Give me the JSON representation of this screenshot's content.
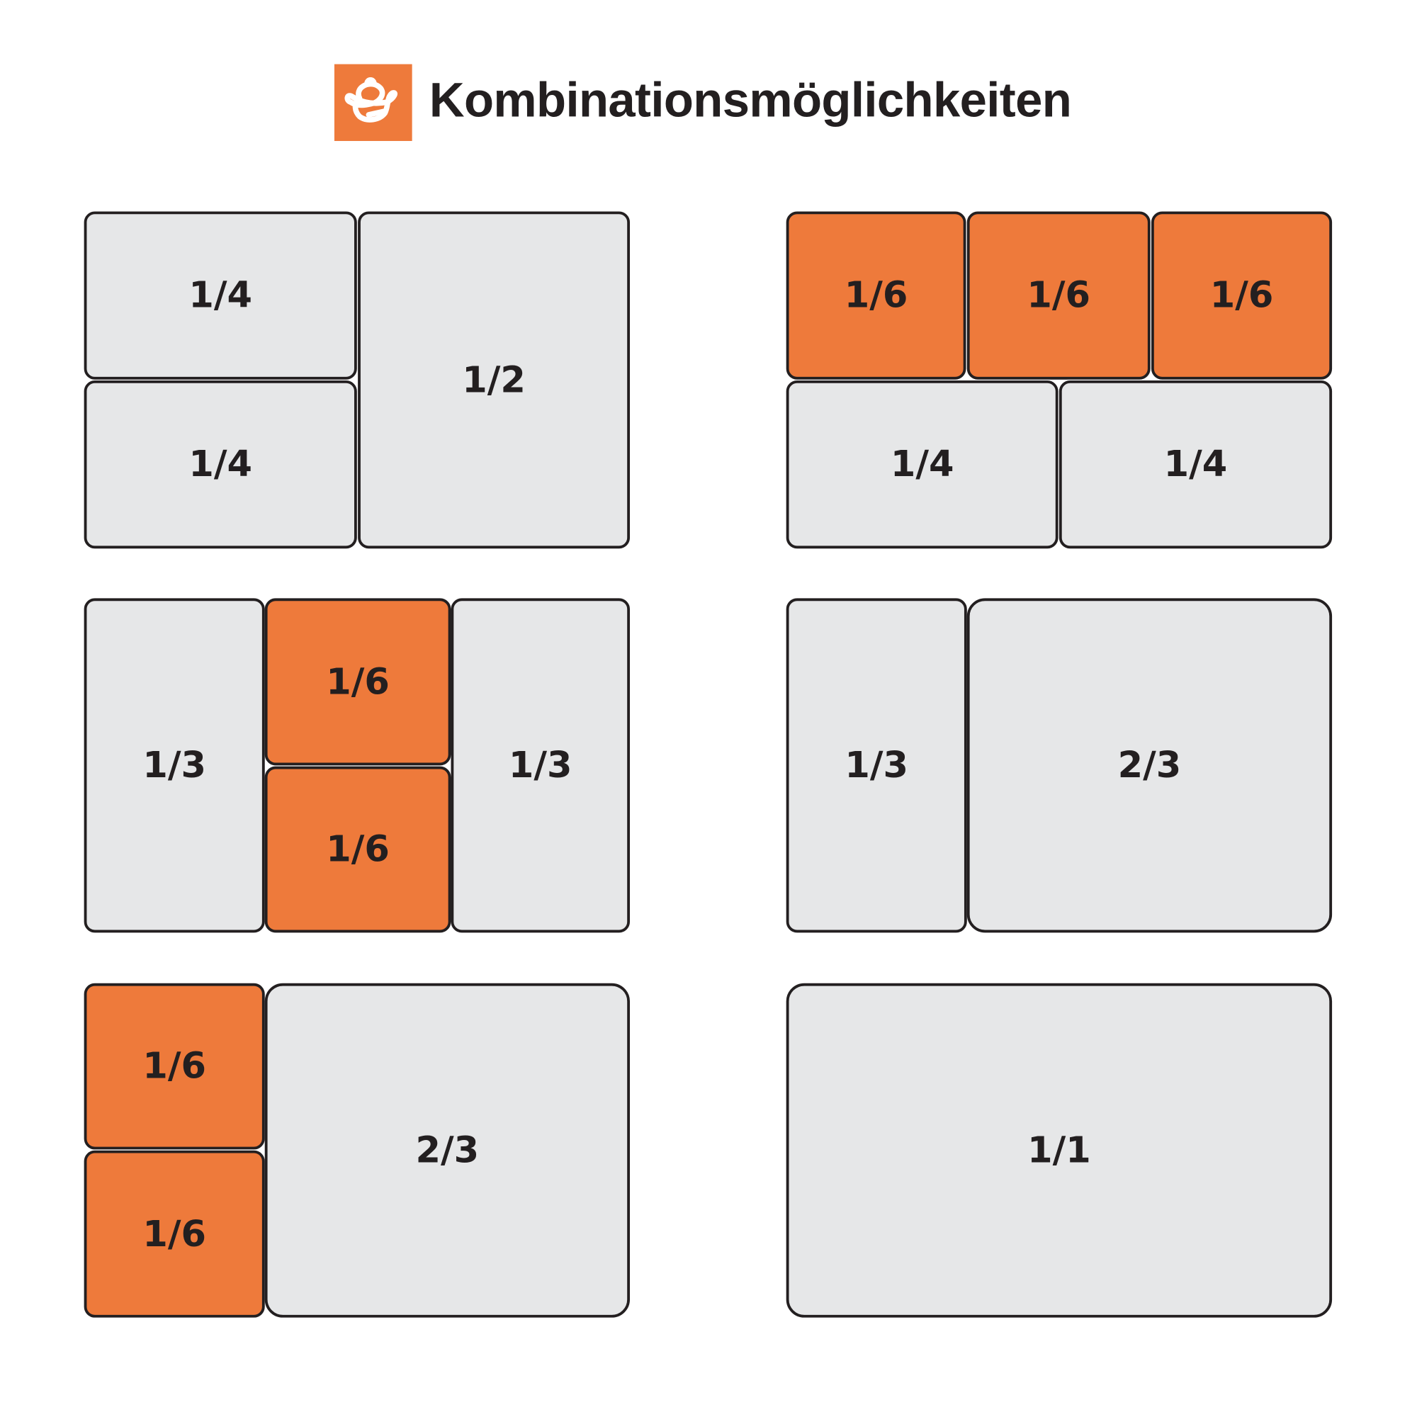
{
  "title": "Kombinationsmöglichkeiten",
  "logo": {
    "icon": "cooking-pot-icon",
    "color": "#ee7a3b"
  },
  "colors": {
    "orange": "#ee7a3b",
    "grey": "#e6e7e8",
    "border": "#231f20"
  },
  "panels": [
    {
      "cells": [
        {
          "label": "1/4",
          "color": "grey"
        },
        {
          "label": "1/4",
          "color": "grey"
        },
        {
          "label": "1/2",
          "color": "grey"
        }
      ]
    },
    {
      "cells": [
        {
          "label": "1/6",
          "color": "orange"
        },
        {
          "label": "1/6",
          "color": "orange"
        },
        {
          "label": "1/6",
          "color": "orange"
        },
        {
          "label": "1/4",
          "color": "grey"
        },
        {
          "label": "1/4",
          "color": "grey"
        }
      ]
    },
    {
      "cells": [
        {
          "label": "1/3",
          "color": "grey"
        },
        {
          "label": "1/6",
          "color": "orange"
        },
        {
          "label": "1/6",
          "color": "orange"
        },
        {
          "label": "1/3",
          "color": "grey"
        }
      ]
    },
    {
      "cells": [
        {
          "label": "1/3",
          "color": "grey"
        },
        {
          "label": "2/3",
          "color": "grey"
        }
      ]
    },
    {
      "cells": [
        {
          "label": "1/6",
          "color": "orange"
        },
        {
          "label": "1/6",
          "color": "orange"
        },
        {
          "label": "2/3",
          "color": "grey"
        }
      ]
    },
    {
      "cells": [
        {
          "label": "1/1",
          "color": "grey"
        }
      ]
    }
  ]
}
